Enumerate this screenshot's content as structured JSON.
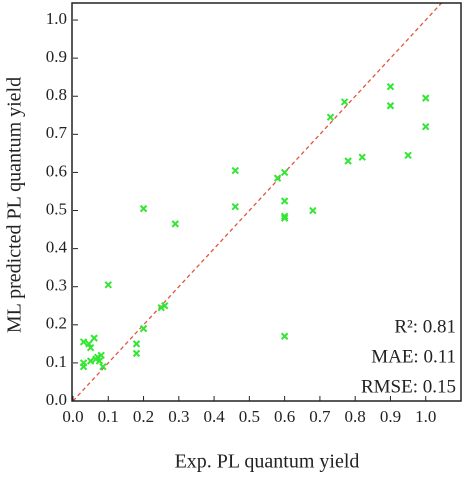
{
  "chart_data": {
    "type": "scatter",
    "xlabel": "Exp. PL quantum yield",
    "ylabel": "ML predicted PL quantum yield",
    "x": [
      0.03,
      0.03,
      0.03,
      0.045,
      0.05,
      0.05,
      0.06,
      0.065,
      0.07,
      0.075,
      0.08,
      0.085,
      0.1,
      0.18,
      0.18,
      0.2,
      0.2,
      0.25,
      0.26,
      0.29,
      0.46,
      0.46,
      0.58,
      0.6,
      0.6,
      0.6,
      0.6,
      0.6,
      0.68,
      0.73,
      0.77,
      0.78,
      0.82,
      0.9,
      0.9,
      0.95,
      1.0,
      1.0
    ],
    "values": [
      0.09,
      0.1,
      0.155,
      0.15,
      0.14,
      0.105,
      0.165,
      0.11,
      0.115,
      0.105,
      0.12,
      0.09,
      0.305,
      0.15,
      0.125,
      0.19,
      0.505,
      0.245,
      0.25,
      0.465,
      0.605,
      0.51,
      0.585,
      0.6,
      0.525,
      0.485,
      0.48,
      0.17,
      0.5,
      0.745,
      0.785,
      0.63,
      0.64,
      0.825,
      0.775,
      0.645,
      0.795,
      0.72
    ],
    "color": "#33e633",
    "marker": "x",
    "reference_line_color": "#e0553f",
    "xlim": [
      0,
      1.1
    ],
    "ylim": [
      0,
      1.05
    ],
    "xticks": [
      {
        "value": 0,
        "label": "0.0"
      },
      {
        "value": 0.1,
        "label": "0.1"
      },
      {
        "value": 0.2,
        "label": "0.2"
      },
      {
        "value": 0.3,
        "label": "0.3"
      },
      {
        "value": 0.4,
        "label": "0.4"
      },
      {
        "value": 0.5,
        "label": "0.5"
      },
      {
        "value": 0.6,
        "label": "0.6"
      },
      {
        "value": 0.7,
        "label": "0.7"
      },
      {
        "value": 0.8,
        "label": "0.8"
      },
      {
        "value": 0.9,
        "label": "0.9"
      },
      {
        "value": 1,
        "label": "1.0"
      }
    ],
    "yticks": [
      {
        "value": 0,
        "label": "0.0"
      },
      {
        "value": 0.1,
        "label": "0.1"
      },
      {
        "value": 0.2,
        "label": "0.2"
      },
      {
        "value": 0.3,
        "label": "0.3"
      },
      {
        "value": 0.4,
        "label": "0.4"
      },
      {
        "value": 0.5,
        "label": "0.5"
      },
      {
        "value": 0.6,
        "label": "0.6"
      },
      {
        "value": 0.7,
        "label": "0.7"
      },
      {
        "value": 0.8,
        "label": "0.8"
      },
      {
        "value": 0.9,
        "label": "0.9"
      },
      {
        "value": 1,
        "label": "1.0"
      }
    ],
    "annotations": [
      "R²: 0.81",
      "MAE: 0.11",
      "RMSE: 0.15"
    ]
  }
}
